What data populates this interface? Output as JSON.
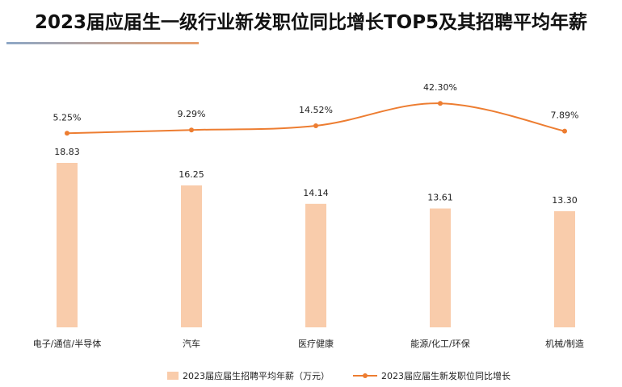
{
  "title": "2023届应届生一级行业新发职位同比增长TOP5及其招聘平均年薪",
  "chart_data": {
    "type": "bar",
    "categories": [
      "电子/通信/半导体",
      "汽车",
      "医疗健康",
      "能源/化工/环保",
      "机械/制造"
    ],
    "series": [
      {
        "name": "2023届应届生招聘平均年薪（万元）",
        "type": "bar",
        "values": [
          18.83,
          16.25,
          14.14,
          13.61,
          13.3
        ],
        "labels": [
          "18.83",
          "16.25",
          "14.14",
          "13.61",
          "13.30"
        ],
        "color": "#f9ccab"
      },
      {
        "name": "2023届应届生新发职位同比增长",
        "type": "line",
        "values": [
          5.25,
          9.29,
          14.52,
          42.3,
          7.89
        ],
        "labels": [
          "5.25%",
          "9.29%",
          "14.52%",
          "42.30%",
          "7.89%"
        ],
        "color": "#ed7d31"
      }
    ],
    "grid": false,
    "legend": "bottom"
  }
}
